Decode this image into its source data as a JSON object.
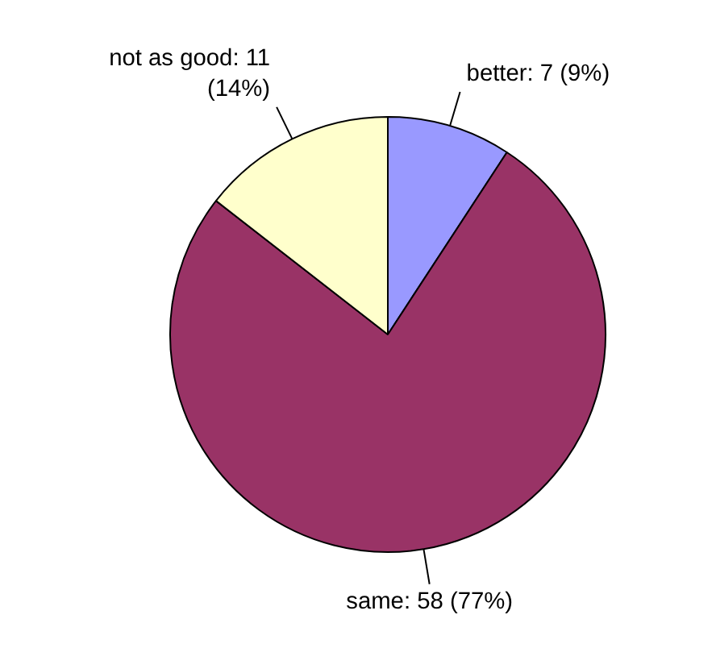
{
  "chart_data": {
    "type": "pie",
    "categories": [
      "better",
      "same",
      "not as good"
    ],
    "values": [
      7,
      58,
      11
    ],
    "colors": [
      "#9999ff",
      "#993366",
      "#ffffcc"
    ],
    "value_labels": [
      " 7  (9%)",
      "58 (77%)",
      "11\n(14%)"
    ]
  }
}
